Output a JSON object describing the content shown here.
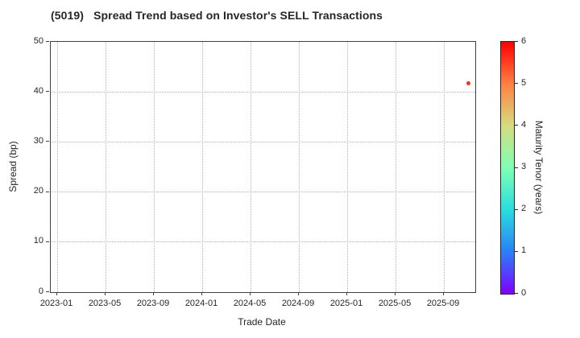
{
  "title": {
    "code": "(5019)",
    "text": "Spread Trend based on Investor's SELL Transactions"
  },
  "axes": {
    "x": {
      "label": "Trade Date"
    },
    "y": {
      "label": "Spread (bp)"
    }
  },
  "colorbar": {
    "label": "Maturity Tenor (years)",
    "ticks": [
      0,
      1,
      2,
      3,
      4,
      5,
      6
    ],
    "min": 0,
    "max": 6,
    "colormap": "rainbow",
    "gradient_stops_bottom_to_top": [
      "#8000ff",
      "#2a80f6",
      "#2adddd",
      "#80ffb4",
      "#d5dd80",
      "#ff8042",
      "#ff0000"
    ]
  },
  "chart_data": {
    "type": "scatter",
    "title": "(5019)   Spread Trend based on Investor's SELL Transactions",
    "xlabel": "Trade Date",
    "ylabel": "Spread (bp)",
    "x_tick_labels": [
      "2023-01",
      "2023-05",
      "2023-09",
      "2024-01",
      "2024-05",
      "2024-09",
      "2025-01",
      "2025-05",
      "2025-09"
    ],
    "y_ticks": [
      0,
      10,
      20,
      30,
      40,
      50
    ],
    "ylim": [
      0,
      50
    ],
    "grid": true,
    "grid_style": "dotted",
    "legend": "colorbar-right",
    "color_axis": {
      "label": "Maturity Tenor (years)",
      "lim": [
        0,
        6
      ],
      "ticks": [
        0,
        1,
        2,
        3,
        4,
        5,
        6
      ],
      "colormap": "rainbow"
    },
    "points": [
      {
        "trade_date": "2025-11",
        "spread_bp": 41.7,
        "maturity_tenor_years": 5.7,
        "color": "#f5321c"
      }
    ]
  }
}
